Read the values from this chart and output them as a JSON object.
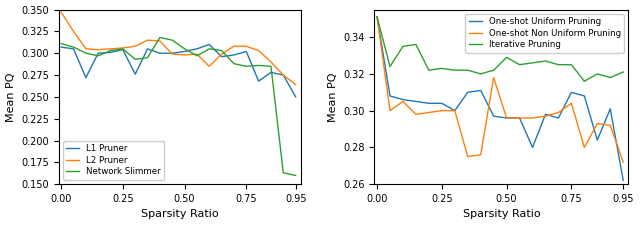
{
  "x_values": [
    0.0,
    0.05,
    0.1,
    0.15,
    0.2,
    0.25,
    0.3,
    0.35,
    0.4,
    0.45,
    0.5,
    0.55,
    0.6,
    0.65,
    0.7,
    0.75,
    0.8,
    0.85,
    0.9,
    0.95
  ],
  "left_l1": [
    0.307,
    0.305,
    0.272,
    0.3,
    0.301,
    0.304,
    0.276,
    0.305,
    0.3,
    0.3,
    0.302,
    0.305,
    0.31,
    0.296,
    0.298,
    0.302,
    0.268,
    0.278,
    0.275,
    0.25
  ],
  "left_l2": [
    0.347,
    0.325,
    0.305,
    0.304,
    0.305,
    0.306,
    0.308,
    0.315,
    0.314,
    0.299,
    0.298,
    0.299,
    0.285,
    0.299,
    0.308,
    0.308,
    0.303,
    0.29,
    0.275,
    0.264
  ],
  "left_ns": [
    0.311,
    0.307,
    0.3,
    0.297,
    0.303,
    0.305,
    0.293,
    0.295,
    0.318,
    0.315,
    0.305,
    0.297,
    0.305,
    0.303,
    0.288,
    0.285,
    0.286,
    0.285,
    0.163,
    0.16
  ],
  "right_uniform": [
    0.351,
    0.308,
    0.306,
    0.305,
    0.304,
    0.304,
    0.3,
    0.31,
    0.311,
    0.297,
    0.296,
    0.296,
    0.28,
    0.298,
    0.296,
    0.31,
    0.308,
    0.284,
    0.301,
    0.262
  ],
  "right_nonuniform": [
    0.351,
    0.3,
    0.305,
    0.298,
    0.299,
    0.3,
    0.3,
    0.275,
    0.276,
    0.318,
    0.296,
    0.296,
    0.296,
    0.297,
    0.299,
    0.304,
    0.28,
    0.293,
    0.292,
    0.272
  ],
  "right_iterative": [
    0.351,
    0.324,
    0.335,
    0.336,
    0.322,
    0.323,
    0.322,
    0.322,
    0.32,
    0.322,
    0.329,
    0.325,
    0.326,
    0.327,
    0.325,
    0.325,
    0.316,
    0.32,
    0.318,
    0.321
  ],
  "left_ylim": [
    0.15,
    0.35
  ],
  "right_ylim": [
    0.26,
    0.355
  ],
  "left_yticks": [
    0.15,
    0.175,
    0.2,
    0.225,
    0.25,
    0.275,
    0.3,
    0.325,
    0.35
  ],
  "right_yticks": [
    0.26,
    0.28,
    0.3,
    0.32,
    0.34
  ],
  "xticks": [
    0.0,
    0.25,
    0.5,
    0.75,
    0.95
  ],
  "xticklabels": [
    "0.00",
    "0.25",
    "0.50",
    "0.75",
    "0.95"
  ],
  "xlabel": "Sparsity Ratio",
  "ylabel": "Mean PQ",
  "color_blue": "#1f77b4",
  "color_orange": "#ff7f0e",
  "color_green": "#2ca02c",
  "left_legend": [
    "L1 Pruner",
    "L2 Pruner",
    "Network Slimmer"
  ],
  "right_legend": [
    "One-shot Uniform Pruning",
    "One-shot Non Uniform Pruning",
    "Iterative Pruning"
  ],
  "linewidth": 1.0
}
